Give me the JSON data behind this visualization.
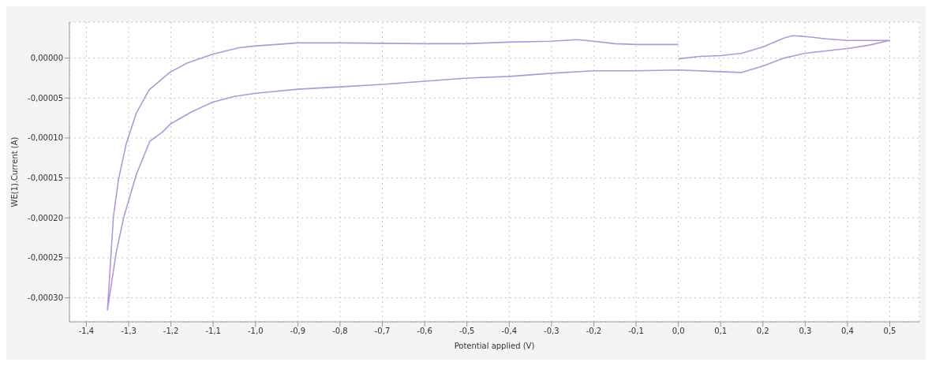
{
  "chart_data": {
    "type": "line",
    "xlabel": "Potential applied (V)",
    "ylabel": "WE(1).Current (A)",
    "xlim": [
      -1.44,
      0.57
    ],
    "ylim": [
      -0.00033,
      4.5e-05
    ],
    "xticks": [
      {
        "value": -1.4,
        "label": "-1,4"
      },
      {
        "value": -1.3,
        "label": "-1,3"
      },
      {
        "value": -1.2,
        "label": "-1,2"
      },
      {
        "value": -1.1,
        "label": "-1,1"
      },
      {
        "value": -1.0,
        "label": "-1,0"
      },
      {
        "value": -0.9,
        "label": "-0,9"
      },
      {
        "value": -0.8,
        "label": "-0,8"
      },
      {
        "value": -0.7,
        "label": "-0,7"
      },
      {
        "value": -0.6,
        "label": "-0,6"
      },
      {
        "value": -0.5,
        "label": "-0,5"
      },
      {
        "value": -0.4,
        "label": "-0,4"
      },
      {
        "value": -0.3,
        "label": "-0,3"
      },
      {
        "value": -0.2,
        "label": "-0,2"
      },
      {
        "value": -0.1,
        "label": "-0,1"
      },
      {
        "value": 0,
        "label": "0,0"
      },
      {
        "value": 0.1,
        "label": "0,1"
      },
      {
        "value": 0.2,
        "label": "0,2"
      },
      {
        "value": 0.3,
        "label": "0,3"
      },
      {
        "value": 0.4,
        "label": "0,4"
      },
      {
        "value": 0.5,
        "label": "0,5"
      }
    ],
    "yticks": [
      {
        "value": -0.0003,
        "label": "-0,00030"
      },
      {
        "value": -0.00025,
        "label": "-0,00025"
      },
      {
        "value": -0.0002,
        "label": "-0,00020"
      },
      {
        "value": -0.00015,
        "label": "-0,00015"
      },
      {
        "value": -0.0001,
        "label": "-0,00010"
      },
      {
        "value": -5e-05,
        "label": "-0,00005"
      },
      {
        "value": 0,
        "label": "0,00000"
      }
    ],
    "grid": true,
    "marker": "none",
    "line_style": "solid",
    "series": [
      {
        "color": "#b497d6",
        "x": [
          0,
          0.05,
          0.1,
          0.15,
          0.2,
          0.25,
          0.27,
          0.3,
          0.35,
          0.4,
          0.45,
          0.5,
          0.45,
          0.4,
          0.3,
          0.25,
          0.2,
          0.15,
          0.1,
          0.0,
          -0.1,
          -0.2,
          -0.3,
          -0.4,
          -0.5,
          -0.6,
          -0.7,
          -0.8,
          -0.9,
          -1.0,
          -1.05,
          -1.1,
          -1.15,
          -1.2,
          -1.221,
          -1.25,
          -1.282,
          -1.312,
          -1.33,
          -1.342,
          -1.35,
          -1.336,
          -1.324,
          -1.306,
          -1.282,
          -1.252,
          -1.203,
          -1.161,
          -1.1,
          -1.039,
          -1.003,
          -0.9,
          -0.8,
          -0.6,
          -0.5,
          -0.4,
          -0.3,
          -0.24,
          -0.2,
          -0.15,
          -0.1,
          0.0
        ],
        "values": [
          -1e-06,
          2e-06,
          3e-06,
          6e-06,
          1.4e-05,
          2.5e-05,
          2.8e-05,
          2.7e-05,
          2.4e-05,
          2.2e-05,
          2.2e-05,
          2.2e-05,
          1.6e-05,
          1.2e-05,
          6e-06,
          0.0,
          -1e-05,
          -1.8e-05,
          -1.7e-05,
          -1.5e-05,
          -1.6e-05,
          -1.6e-05,
          -1.9e-05,
          -2.3e-05,
          -2.5e-05,
          -2.9e-05,
          -3.3e-05,
          -3.6e-05,
          -3.9e-05,
          -4.4e-05,
          -4.8e-05,
          -5.5e-05,
          -6.7e-05,
          -8.2e-05,
          -9.3e-05,
          -0.000104,
          -0.000146,
          -0.0002,
          -0.000245,
          -0.000287,
          -0.000315,
          -0.000198,
          -0.000152,
          -0.000108,
          -6.9e-05,
          -4e-05,
          -1.8e-05,
          -6e-06,
          5e-06,
          1.3e-05,
          1.5e-05,
          1.9e-05,
          1.9e-05,
          1.8e-05,
          1.8e-05,
          2e-05,
          2.1e-05,
          2.3e-05,
          2.1e-05,
          1.8e-05,
          1.7e-05,
          1.7e-05
        ]
      }
    ]
  }
}
